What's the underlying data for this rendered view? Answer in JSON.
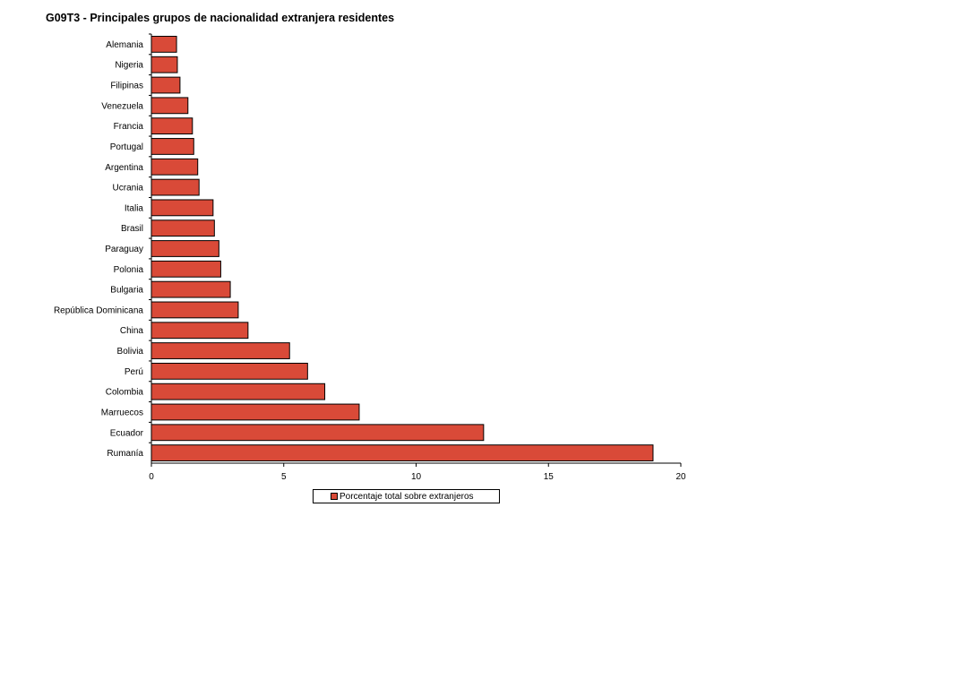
{
  "title": "G09T3 - Principales grupos de nacionalidad extranjera residentes",
  "colors": {
    "bar_fill": "#d94a38",
    "bar_stroke": "#000000",
    "axis": "#000000",
    "background": "#ffffff"
  },
  "chart_data": {
    "type": "bar",
    "orientation": "horizontal",
    "title": "G09T3 - Principales grupos de nacionalidad extranjera residentes",
    "xlabel": "",
    "ylabel": "",
    "xlim": [
      0,
      20
    ],
    "x_ticks": [
      "0",
      "5",
      "10",
      "15",
      "20"
    ],
    "grid": false,
    "legend_position": "bottom",
    "categories": [
      "Alemania",
      "Nigeria",
      "Filipinas",
      "Venezuela",
      "Francia",
      "Portugal",
      "Argentina",
      "Ucrania",
      "Italia",
      "Brasil",
      "Paraguay",
      "Polonia",
      "Bulgaria",
      "República Dominicana",
      "China",
      "Bolivia",
      "Perú",
      "Colombia",
      "Marruecos",
      "Ecuador",
      "Rumanía"
    ],
    "series": [
      {
        "name": "Porcentaje total sobre extranjeros",
        "values": [
          0.95,
          0.98,
          1.08,
          1.38,
          1.55,
          1.6,
          1.75,
          1.8,
          2.33,
          2.38,
          2.55,
          2.62,
          2.98,
          3.28,
          3.65,
          5.22,
          5.9,
          6.55,
          7.85,
          12.55,
          18.95
        ]
      }
    ]
  }
}
